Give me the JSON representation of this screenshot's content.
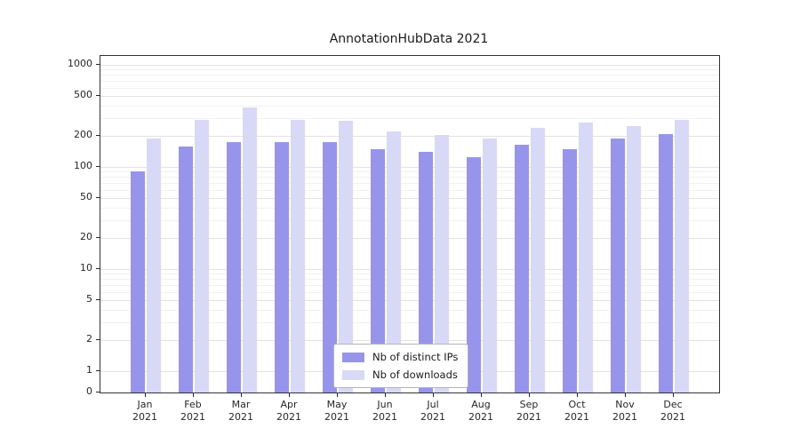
{
  "figure": {
    "background": "#ffffff"
  },
  "chart_data": {
    "type": "bar",
    "title": "AnnotationHubData 2021",
    "categories": [
      "Jan",
      "Feb",
      "Mar",
      "Apr",
      "May",
      "Jun",
      "Jul",
      "Aug",
      "Sep",
      "Oct",
      "Nov",
      "Dec"
    ],
    "year": "2021",
    "xlabel": "",
    "ylabel": "",
    "yscale": "symlog",
    "ylim": [
      0,
      1000
    ],
    "yticks": [
      0,
      1,
      2,
      5,
      10,
      20,
      50,
      100,
      200,
      500,
      1000
    ],
    "grid": true,
    "legend_position": "lower center",
    "series": [
      {
        "name": "Nb of distinct IPs",
        "color": "#9795eb",
        "values": [
          90,
          160,
          175,
          175,
          175,
          150,
          140,
          125,
          165,
          150,
          190,
          210
        ]
      },
      {
        "name": "Nb of downloads",
        "color": "#d8d8f7",
        "values": [
          190,
          290,
          380,
          290,
          285,
          225,
          205,
          190,
          240,
          270,
          250,
          290
        ]
      }
    ]
  }
}
